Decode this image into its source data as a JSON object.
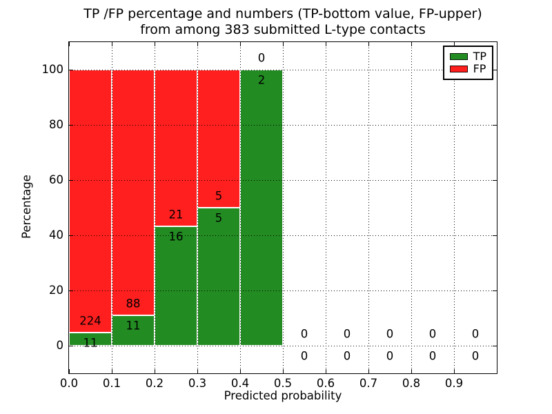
{
  "title": {
    "line1": "TP /FP percentage and numbers (TP-bottom value, FP-upper)",
    "line2": "from among 383 submitted L-type contacts"
  },
  "axes": {
    "xlabel": "Predicted probability",
    "ylabel": "Percentage",
    "xticks": [
      "0.0",
      "0.1",
      "0.2",
      "0.3",
      "0.4",
      "0.5",
      "0.6",
      "0.7",
      "0.8",
      "0.9"
    ],
    "yticks": [
      "0",
      "20",
      "40",
      "60",
      "80",
      "100"
    ]
  },
  "legend": {
    "items": [
      {
        "label": "TP",
        "color": "#228b22"
      },
      {
        "label": "FP",
        "color": "#ff1f1f"
      }
    ]
  },
  "colors": {
    "tp_green": "#228b22",
    "fp_red": "#ff1f1f",
    "axis_black": "#000000",
    "background": "#ffffff"
  },
  "chart_data": {
    "type": "bar",
    "mode": "stacked-percentage",
    "title": "TP /FP percentage and numbers (TP-bottom value, FP-upper) from among 383 submitted L-type contacts",
    "xlabel": "Predicted probability",
    "ylabel": "Percentage",
    "xlim": [
      0.0,
      1.0
    ],
    "ylim": [
      -10,
      110
    ],
    "grid": true,
    "legend_position": "upper right",
    "bin_edges": [
      0.0,
      0.1,
      0.2,
      0.3,
      0.4,
      0.5,
      0.6,
      0.7,
      0.8,
      0.9,
      1.0
    ],
    "series": [
      {
        "name": "TP",
        "color": "#228b22",
        "counts": [
          11,
          11,
          16,
          5,
          2,
          0,
          0,
          0,
          0,
          0
        ]
      },
      {
        "name": "FP",
        "color": "#ff1f1f",
        "counts": [
          224,
          88,
          21,
          5,
          0,
          0,
          0,
          0,
          0,
          0
        ]
      }
    ],
    "tp_percent_by_bin": [
      4.7,
      11.1,
      43.2,
      50.0,
      100.0,
      0,
      0,
      0,
      0,
      0
    ],
    "total_contacts": 383,
    "annotation_layout": {
      "upper_value": "FP count",
      "lower_value": "TP count"
    }
  }
}
